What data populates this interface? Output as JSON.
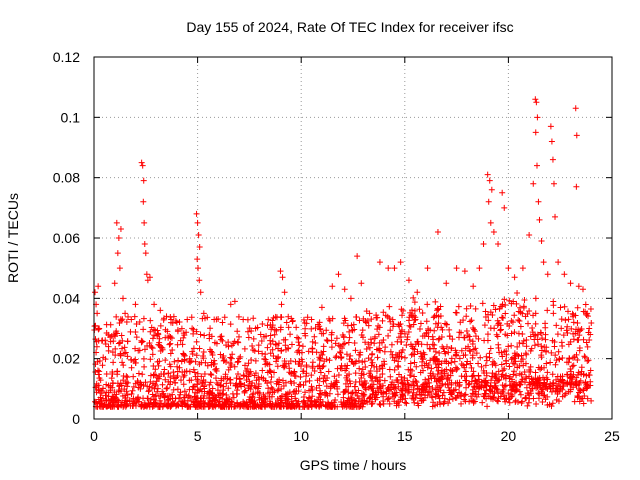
{
  "chart_data": {
    "type": "scatter",
    "title": "Day 155 of 2024, Rate Of TEC Index for receiver ifsc",
    "xlabel": "GPS time / hours",
    "ylabel": "ROTI / TECUs",
    "xlim": [
      0,
      25
    ],
    "ylim": [
      0,
      0.12
    ],
    "x_ticks": [
      "0",
      "5",
      "10",
      "15",
      "20",
      "25"
    ],
    "y_ticks": [
      "0",
      "0.02",
      "0.04",
      "0.06",
      "0.08",
      "0.1",
      "0.12"
    ],
    "grid": true,
    "marker": "+",
    "series_color": "#ff0000",
    "series": [
      {
        "name": "",
        "points": [
          [
            0.05,
            0.042
          ],
          [
            0.1,
            0.038
          ],
          [
            0.15,
            0.035
          ],
          [
            0.2,
            0.044
          ],
          [
            0.25,
            0.03
          ],
          [
            1.1,
            0.065
          ],
          [
            1.2,
            0.06
          ],
          [
            1.3,
            0.063
          ],
          [
            1.15,
            0.055
          ],
          [
            1.25,
            0.05
          ],
          [
            1.0,
            0.045
          ],
          [
            1.4,
            0.04
          ],
          [
            1.5,
            0.035
          ],
          [
            1.8,
            0.033
          ],
          [
            2.0,
            0.038
          ],
          [
            2.3,
            0.085
          ],
          [
            2.35,
            0.084
          ],
          [
            2.4,
            0.079
          ],
          [
            2.38,
            0.072
          ],
          [
            2.42,
            0.065
          ],
          [
            2.45,
            0.058
          ],
          [
            2.5,
            0.055
          ],
          [
            2.55,
            0.048
          ],
          [
            2.6,
            0.046
          ],
          [
            2.7,
            0.047
          ],
          [
            2.9,
            0.038
          ],
          [
            3.2,
            0.036
          ],
          [
            3.5,
            0.034
          ],
          [
            4.0,
            0.032
          ],
          [
            4.5,
            0.033
          ],
          [
            4.95,
            0.068
          ],
          [
            5.0,
            0.065
          ],
          [
            5.05,
            0.061
          ],
          [
            5.1,
            0.057
          ],
          [
            4.98,
            0.053
          ],
          [
            5.02,
            0.05
          ],
          [
            5.08,
            0.046
          ],
          [
            5.15,
            0.042
          ],
          [
            5.3,
            0.035
          ],
          [
            5.8,
            0.033
          ],
          [
            6.2,
            0.032
          ],
          [
            6.6,
            0.038
          ],
          [
            6.8,
            0.039
          ],
          [
            7.2,
            0.033
          ],
          [
            7.8,
            0.03
          ],
          [
            8.5,
            0.026
          ],
          [
            9.0,
            0.049
          ],
          [
            9.1,
            0.047
          ],
          [
            9.2,
            0.042
          ],
          [
            9.05,
            0.038
          ],
          [
            9.3,
            0.032
          ],
          [
            9.8,
            0.027
          ],
          [
            10.5,
            0.033
          ],
          [
            11.0,
            0.037
          ],
          [
            11.5,
            0.044
          ],
          [
            11.8,
            0.048
          ],
          [
            12.1,
            0.043
          ],
          [
            12.4,
            0.04
          ],
          [
            12.7,
            0.054
          ],
          [
            12.9,
            0.045
          ],
          [
            13.3,
            0.035
          ],
          [
            13.8,
            0.052
          ],
          [
            14.2,
            0.05
          ],
          [
            14.5,
            0.05
          ],
          [
            14.8,
            0.052
          ],
          [
            15.2,
            0.046
          ],
          [
            15.6,
            0.042
          ],
          [
            16.1,
            0.05
          ],
          [
            16.6,
            0.062
          ],
          [
            17.0,
            0.045
          ],
          [
            17.5,
            0.05
          ],
          [
            17.9,
            0.049
          ],
          [
            18.3,
            0.044
          ],
          [
            18.6,
            0.05
          ],
          [
            18.8,
            0.058
          ],
          [
            19.0,
            0.081
          ],
          [
            19.1,
            0.079
          ],
          [
            19.2,
            0.076
          ],
          [
            19.05,
            0.072
          ],
          [
            19.15,
            0.065
          ],
          [
            19.3,
            0.062
          ],
          [
            19.5,
            0.058
          ],
          [
            19.7,
            0.075
          ],
          [
            19.8,
            0.07
          ],
          [
            20.0,
            0.05
          ],
          [
            20.3,
            0.047
          ],
          [
            20.7,
            0.05
          ],
          [
            21.0,
            0.061
          ],
          [
            21.2,
            0.078
          ],
          [
            21.3,
            0.106
          ],
          [
            21.35,
            0.105
          ],
          [
            21.4,
            0.1
          ],
          [
            21.32,
            0.095
          ],
          [
            21.38,
            0.084
          ],
          [
            21.45,
            0.072
          ],
          [
            21.5,
            0.066
          ],
          [
            21.6,
            0.059
          ],
          [
            21.7,
            0.052
          ],
          [
            21.9,
            0.048
          ],
          [
            22.05,
            0.097
          ],
          [
            22.1,
            0.092
          ],
          [
            22.15,
            0.086
          ],
          [
            22.2,
            0.078
          ],
          [
            22.25,
            0.067
          ],
          [
            22.4,
            0.052
          ],
          [
            22.7,
            0.048
          ],
          [
            23.0,
            0.045
          ],
          [
            23.25,
            0.103
          ],
          [
            23.3,
            0.094
          ],
          [
            23.28,
            0.077
          ],
          [
            23.4,
            0.044
          ],
          [
            23.6,
            0.043
          ],
          [
            23.8,
            0.035
          ],
          [
            23.9,
            0.03
          ],
          [
            23.95,
            0.028
          ]
        ]
      }
    ]
  }
}
